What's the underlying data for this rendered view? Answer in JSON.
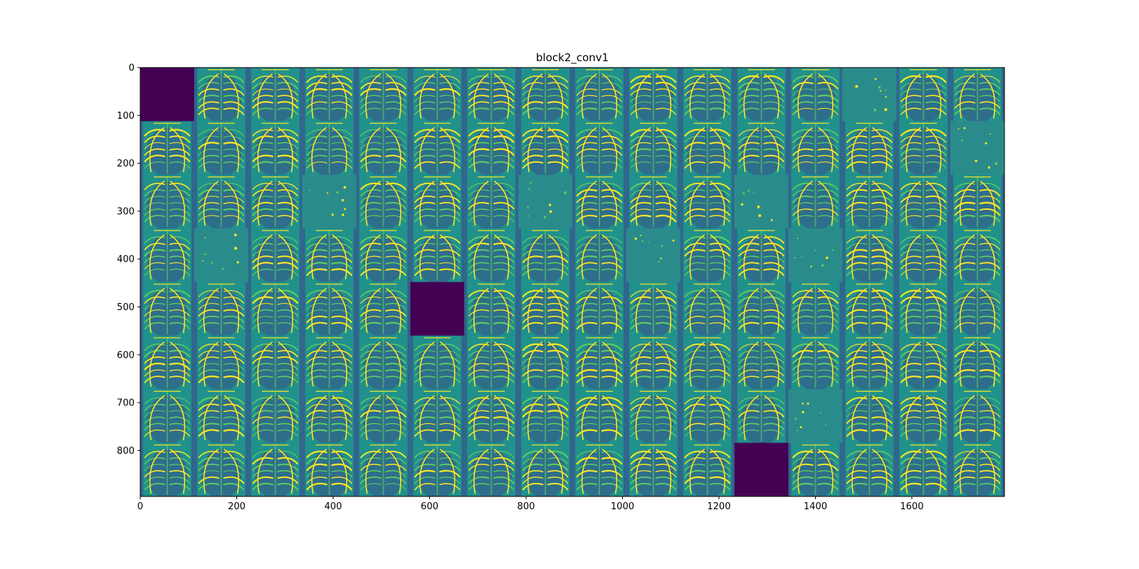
{
  "chart_data": {
    "type": "heatmap",
    "title": "block2_conv1",
    "xlabel": "",
    "ylabel": "",
    "xlim": [
      0,
      1792
    ],
    "ylim": [
      896,
      0
    ],
    "x_ticks": [
      0,
      200,
      400,
      600,
      800,
      1000,
      1200,
      1400,
      1600
    ],
    "y_ticks": [
      0,
      100,
      200,
      300,
      400,
      500,
      600,
      700,
      800
    ],
    "grid": false,
    "colormap": "viridis",
    "tile_grid": {
      "rows": 8,
      "cols": 16,
      "tile_size": 112
    },
    "inactive_tiles": [
      {
        "row": 0,
        "col": 0
      },
      {
        "row": 4,
        "col": 5
      },
      {
        "row": 7,
        "col": 11
      }
    ],
    "flat_tiles": [
      {
        "row": 0,
        "col": 13
      },
      {
        "row": 1,
        "col": 15
      },
      {
        "row": 2,
        "col": 3
      },
      {
        "row": 2,
        "col": 7
      },
      {
        "row": 2,
        "col": 11
      },
      {
        "row": 3,
        "col": 1
      },
      {
        "row": 3,
        "col": 9
      },
      {
        "row": 3,
        "col": 12
      },
      {
        "row": 6,
        "col": 12
      }
    ]
  },
  "colors": {
    "inactive": "#440154",
    "flat": "#2a8c8a",
    "dark": "#3b528b",
    "mid": "#21918c",
    "light": "#5ec962",
    "bright": "#fde725"
  }
}
